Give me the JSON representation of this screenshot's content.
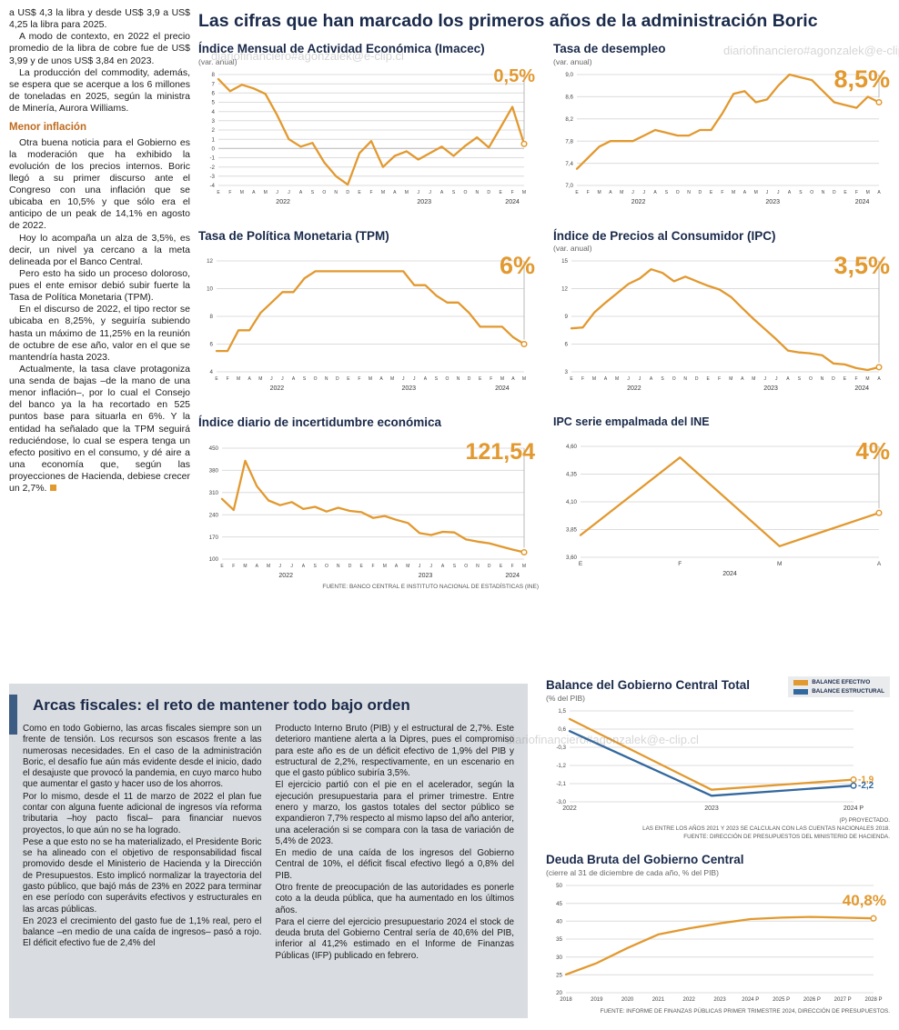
{
  "watermark": "diariofinanciero#agonzalek@e-clip.cl",
  "colors": {
    "accent_orange": "#E2992F",
    "accent_blue": "#33689E",
    "navy": "#1A2A4A",
    "gray_box": "#D9DCE0"
  },
  "article": {
    "intro": [
      "a US$ 4,3 la libra y desde US$ 3,9 a US$ 4,25 la libra para 2025.",
      "A modo de contexto, en 2022 el precio promedio de la libra de cobre fue de US$ 3,99 y de unos US$ 3,84 en 2023.",
      "La producción del commodity, además, se espera que se acerque a los 6 millones de toneladas en 2025, según la ministra de Minería, Aurora Williams."
    ],
    "subhead": "Menor inflación",
    "body": [
      "Otra buena noticia para el Gobierno es la moderación que ha exhibido la evolución de los precios internos. Boric llegó a su primer discurso ante el Congreso con una inflación que se ubicaba en 10,5% y que sólo era el anticipo de un peak de 14,1% en agosto de 2022.",
      "Hoy lo acompaña un alza de 3,5%, es decir, un nivel ya cercano a la meta delineada por el Banco Central.",
      "Pero esto ha sido un proceso doloroso, pues el ente emisor debió subir fuerte la Tasa de Política Monetaria (TPM).",
      "En el discurso de 2022, el tipo rector se ubicaba en 8,25%, y seguiría subiendo hasta un máximo de 11,25% en la reunión de octubre de ese año, valor en el que se mantendría hasta 2023.",
      "Actualmente, la tasa clave protagoniza una senda de bajas –de la mano de una menor inflación–, por lo cual el Consejo del banco ya la ha recortado en 525 puntos base para situarla en 6%. Y la entidad ha señalado que la TPM seguirá reduciéndose, lo cual se espera tenga un efecto positivo en el consumo, y dé aire a una economía que, según las proyecciones de Hacienda, debiese crecer un 2,7%."
    ]
  },
  "main": {
    "title": "Las cifras que han marcado los primeros años de la administración Boric",
    "source": "FUENTE: BANCO CENTRAL E INSTITUTO NACIONAL DE ESTADÍSTICAS (INE)"
  },
  "bottom": {
    "title": "Arcas fiscales: el reto de mantener todo bajo orden",
    "col1": [
      "Como en todo Gobierno, las arcas fiscales siempre son un frente de tensión. Los recursos son escasos frente a las numerosas necesidades. En el caso de la administración Boric, el desafío fue aún más evidente desde el inicio, dado el desajuste que provocó la pandemia, en cuyo marco hubo que aumentar el gasto y hacer uso de los ahorros.",
      "Por lo mismo, desde el 11 de marzo de 2022 el plan fue contar con alguna fuente adicional de ingresos vía reforma tributaria –hoy pacto fiscal– para financiar nuevos proyectos, lo que aún no se ha logrado.",
      "Pese a que esto no se ha materializado, el Presidente Boric se ha alineado con el objetivo de responsabilidad fiscal promovido desde el Ministerio de Hacienda y la Dirección de Presupuestos. Esto implicó normalizar la trayectoria del gasto público, que bajó más de 23% en 2022 para terminar en ese período con superávits efectivos y estructurales en las arcas públicas.",
      "En 2023 el crecimiento del gasto fue de 1,1% real, pero el balance –en medio de una caída de ingresos– pasó a rojo. El déficit efectivo fue de 2,4% del"
    ],
    "col2": [
      "Producto Interno Bruto (PIB) y el estructural de 2,7%. Este deterioro mantiene alerta a la Dipres, pues el compromiso para este año es de un déficit efectivo de 1,9% del PIB y estructural de 2,2%, respectivamente, en un escenario en que el gasto público subiría 3,5%.",
      "El ejercicio partió con el pie en el acelerador, según la ejecución presupuestaria para el primer trimestre. Entre enero y marzo, los gastos totales del sector público se expandieron 7,7% respecto al mismo lapso del año anterior, una aceleración si se compara con la tasa de variación de 5,4% de 2023.",
      "En medio de una caída de los ingresos del Gobierno Central de 10%, el déficit fiscal efectivo llegó a 0,8% del PIB.",
      "Otro frente de preocupación de las autoridades es ponerle coto a la deuda pública, que ha aumentado en los últimos años.",
      "Para el cierre del ejercicio presupuestario 2024 el stock de deuda bruta del Gobierno Central sería de 40,6% del PIB, inferior al 41,2% estimado en el Informe de Finanzas Públicas (IFP) publicado en febrero."
    ],
    "legend": [
      {
        "label": "BALANCE EFECTIVO",
        "color": "#E2992F"
      },
      {
        "label": "BALANCE ESTRUCTURAL",
        "color": "#33689E"
      }
    ],
    "notes": [
      "(P) PROYECTADO.",
      "LAS ENTRE LOS AÑOS 2021 Y 2023 SE CALCULAN CON LAS CUENTAS NACIONALES 2018.",
      "FUENTE: DIRECCIÓN DE PRESUPUESTOS DEL MINISTERIO DE HACIENDA."
    ],
    "deuda_source": "FUENTE: INFORME DE FINANZAS PÚBLICAS PRIMER TRIMESTRE 2024, DIRECCIÓN DE PRESUPUESTOS."
  },
  "chart_data": [
    {
      "type": "line",
      "title": "Índice Mensual de Actividad Económica (Imacec)",
      "subtitle": "(var. anual)",
      "big_value": "0,5%",
      "big_size": 20,
      "y_min": -4,
      "y_max": 8,
      "y_ticks": [
        8,
        7,
        6,
        5,
        4,
        3,
        2,
        1,
        0,
        -1,
        -2,
        -3,
        -4
      ],
      "y_tick_labels": [
        "8",
        "7",
        "6",
        "5",
        "4",
        "3",
        "2",
        "1",
        "0",
        "-1",
        "-2",
        "-3",
        "-4"
      ],
      "x_labels": [
        "E",
        "F",
        "M",
        "A",
        "M",
        "J",
        "J",
        "A",
        "S",
        "O",
        "N",
        "D",
        "E",
        "F",
        "M",
        "A",
        "M",
        "J",
        "J",
        "A",
        "S",
        "O",
        "N",
        "D",
        "E",
        "F",
        "M"
      ],
      "years": [
        {
          "label": "2022",
          "from": 0,
          "to": 11
        },
        {
          "label": "2023",
          "from": 12,
          "to": 23
        },
        {
          "label": "2024",
          "from": 24,
          "to": 26
        }
      ],
      "series": [
        {
          "name": "Imacec",
          "color": "#E2992F",
          "values": [
            7.5,
            6.2,
            6.9,
            6.5,
            5.9,
            3.6,
            1.0,
            0.2,
            0.6,
            -1.5,
            -3.0,
            -3.9,
            -0.5,
            0.8,
            -2.0,
            -0.8,
            -0.3,
            -1.2,
            -0.5,
            0.2,
            -0.8,
            0.3,
            1.2,
            0.1,
            2.3,
            4.5,
            0.5
          ]
        }
      ],
      "end_line": true,
      "ml": 22,
      "mr": 16
    },
    {
      "type": "line",
      "title": "Tasa de desempleo",
      "subtitle": "(var. anual)",
      "big_value": "8,5%",
      "big_size": 27,
      "y_min": 7.0,
      "y_max": 9.0,
      "y_ticks": [
        9.0,
        8.6,
        8.2,
        7.8,
        7.4,
        7.0
      ],
      "y_tick_labels": [
        "9,0",
        "8,6",
        "8,2",
        "7,8",
        "7,4",
        "7,0"
      ],
      "x_labels": [
        "E",
        "F",
        "M",
        "A",
        "M",
        "J",
        "J",
        "A",
        "S",
        "O",
        "N",
        "D",
        "E",
        "F",
        "M",
        "A",
        "M",
        "J",
        "J",
        "A",
        "S",
        "O",
        "N",
        "D",
        "E",
        "F",
        "M",
        "A"
      ],
      "years": [
        {
          "label": "2022",
          "from": 0,
          "to": 11
        },
        {
          "label": "2023",
          "from": 12,
          "to": 23
        },
        {
          "label": "2024",
          "from": 24,
          "to": 27
        }
      ],
      "series": [
        {
          "name": "Tasa de desempleo",
          "color": "#E2992F",
          "values": [
            7.3,
            7.5,
            7.7,
            7.8,
            7.8,
            7.8,
            7.9,
            8.0,
            7.95,
            7.9,
            7.9,
            8.0,
            8.0,
            8.3,
            8.65,
            8.7,
            8.5,
            8.55,
            8.8,
            9.0,
            8.95,
            8.9,
            8.7,
            8.5,
            8.45,
            8.4,
            8.6,
            8.5
          ]
        }
      ],
      "end_line": true,
      "ml": 26,
      "mr": 16
    },
    {
      "type": "line",
      "title": "Tasa de Política Monetaria (TPM)",
      "subtitle": "",
      "big_value": "6%",
      "big_size": 27,
      "y_min": 4,
      "y_max": 12,
      "y_ticks": [
        12,
        10,
        8,
        6,
        4
      ],
      "y_tick_labels": [
        "12",
        "10",
        "8",
        "6",
        "4"
      ],
      "x_labels": [
        "E",
        "F",
        "M",
        "A",
        "M",
        "J",
        "J",
        "A",
        "S",
        "O",
        "N",
        "D",
        "E",
        "F",
        "M",
        "A",
        "M",
        "J",
        "J",
        "A",
        "S",
        "O",
        "N",
        "D",
        "E",
        "F",
        "M",
        "A",
        "M"
      ],
      "years": [
        {
          "label": "2022",
          "from": 0,
          "to": 11
        },
        {
          "label": "2023",
          "from": 12,
          "to": 23
        },
        {
          "label": "2024",
          "from": 24,
          "to": 28
        }
      ],
      "series": [
        {
          "name": "TPM",
          "color": "#E2992F",
          "values": [
            5.5,
            5.5,
            7.0,
            7.0,
            8.25,
            9.0,
            9.75,
            9.75,
            10.75,
            11.25,
            11.25,
            11.25,
            11.25,
            11.25,
            11.25,
            11.25,
            11.25,
            11.25,
            10.25,
            10.25,
            9.5,
            9.0,
            9.0,
            8.25,
            7.25,
            7.25,
            7.25,
            6.5,
            6.0
          ]
        }
      ],
      "end_line": true,
      "ml": 20,
      "mr": 16
    },
    {
      "type": "line",
      "title": "Índice de Precios al Consumidor (IPC)",
      "subtitle": "(var. anual)",
      "big_value": "3,5%",
      "big_size": 27,
      "y_min": 3,
      "y_max": 15,
      "y_ticks": [
        15,
        12,
        9,
        6,
        3
      ],
      "y_tick_labels": [
        "15",
        "12",
        "9",
        "6",
        "3"
      ],
      "x_labels": [
        "E",
        "F",
        "M",
        "A",
        "M",
        "J",
        "J",
        "A",
        "S",
        "O",
        "N",
        "D",
        "E",
        "F",
        "M",
        "A",
        "M",
        "J",
        "J",
        "A",
        "S",
        "O",
        "N",
        "D",
        "E",
        "F",
        "M",
        "A"
      ],
      "years": [
        {
          "label": "2022",
          "from": 0,
          "to": 11
        },
        {
          "label": "2023",
          "from": 12,
          "to": 23
        },
        {
          "label": "2024",
          "from": 24,
          "to": 27
        }
      ],
      "series": [
        {
          "name": "IPC",
          "color": "#E2992F",
          "values": [
            7.7,
            7.8,
            9.4,
            10.5,
            11.5,
            12.5,
            13.1,
            14.1,
            13.7,
            12.8,
            13.3,
            12.8,
            12.3,
            11.9,
            11.1,
            9.9,
            8.7,
            7.6,
            6.5,
            5.3,
            5.1,
            5.0,
            4.8,
            3.9,
            3.8,
            3.4,
            3.2,
            3.5
          ]
        }
      ],
      "end_line": true,
      "ml": 20,
      "mr": 16
    },
    {
      "type": "line",
      "title": "Índice diario de incertidumbre económica",
      "subtitle": "",
      "big_value": "121,54",
      "big_size": 25,
      "y_min": 100,
      "y_max": 450,
      "y_ticks": [
        450,
        380,
        310,
        240,
        170,
        100
      ],
      "y_tick_labels": [
        "450",
        "380",
        "310",
        "240",
        "170",
        "100"
      ],
      "x_labels": [
        "E",
        "F",
        "M",
        "A",
        "M",
        "J",
        "J",
        "A",
        "S",
        "O",
        "N",
        "D",
        "E",
        "F",
        "M",
        "A",
        "M",
        "J",
        "J",
        "A",
        "S",
        "O",
        "N",
        "D",
        "E",
        "F",
        "M"
      ],
      "years": [
        {
          "label": "2022",
          "from": 0,
          "to": 11
        },
        {
          "label": "2023",
          "from": 12,
          "to": 23
        },
        {
          "label": "2024",
          "from": 24,
          "to": 26
        }
      ],
      "series": [
        {
          "name": "Incertidumbre económica",
          "color": "#E2992F",
          "values": [
            290,
            255,
            410,
            330,
            285,
            270,
            280,
            258,
            265,
            250,
            262,
            252,
            248,
            230,
            236,
            224,
            214,
            182,
            176,
            186,
            184,
            162,
            155,
            150,
            140,
            130,
            121.54
          ]
        }
      ],
      "end_line": true,
      "ml": 26,
      "mr": 16
    },
    {
      "type": "line",
      "title": "IPC serie empalmada del INE",
      "subtitle": "",
      "big_value": "4%",
      "big_size": 26,
      "y_min": 3.6,
      "y_max": 4.6,
      "y_ticks": [
        4.6,
        4.35,
        4.1,
        3.85,
        3.6
      ],
      "y_tick_labels": [
        "4,60",
        "4,35",
        "4,10",
        "3,85",
        "3,60"
      ],
      "x_labels": [
        "E",
        "F",
        "M",
        "A"
      ],
      "x_size": 6.5,
      "years": [
        {
          "label": "2024",
          "from": 0,
          "to": 3
        }
      ],
      "series": [
        {
          "name": "IPC serie empalmada",
          "color": "#E2992F",
          "values": [
            3.8,
            4.5,
            3.7,
            4.0
          ]
        }
      ],
      "end_line": true,
      "ml": 30,
      "mr": 16
    },
    {
      "type": "line",
      "title": "Balance del Gobierno Central Total",
      "subtitle": "(% del PIB)",
      "y_min": -3.0,
      "y_max": 1.5,
      "y_ticks": [
        1.5,
        0.6,
        -0.3,
        -1.2,
        -2.1,
        -3.0
      ],
      "y_tick_labels": [
        "1,5",
        "0,6",
        "-0,3",
        "-1,2",
        "-2,1",
        "-3,0"
      ],
      "x_labels": [
        "2022",
        "2023",
        "2024 P"
      ],
      "x_size": 7,
      "series": [
        {
          "name": "Balance efectivo",
          "color": "#E2992F",
          "values": [
            1.1,
            -2.4,
            -1.9
          ],
          "end_label": "-1,9"
        },
        {
          "name": "Balance estructural",
          "color": "#33689E",
          "values": [
            0.5,
            -2.7,
            -2.2
          ],
          "end_label": "-2,2"
        }
      ],
      "end_line": false,
      "ml": 26,
      "mr": 36,
      "mb": 14
    },
    {
      "type": "line",
      "title": "Deuda Bruta del Gobierno Central",
      "subtitle": "(cierre al 31 de diciembre de cada año, % del PIB)",
      "big_value": "40,8%",
      "big_size": 17,
      "big_top": 16,
      "y_min": 20,
      "y_max": 50,
      "y_ticks": [
        50,
        45,
        40,
        35,
        30,
        25,
        20
      ],
      "y_tick_labels": [
        "50",
        "45",
        "40",
        "35",
        "30",
        "25",
        "20"
      ],
      "x_labels": [
        "2018",
        "2019",
        "2020",
        "2021",
        "2022",
        "2023",
        "2024 P",
        "2025 P",
        "2026 P",
        "2027 P",
        "2028 P"
      ],
      "x_size": 6,
      "series": [
        {
          "name": "Deuda bruta",
          "color": "#E2992F",
          "values": [
            25.1,
            28.3,
            32.5,
            36.3,
            38.0,
            39.4,
            40.6,
            41.0,
            41.2,
            41.0,
            40.8
          ]
        }
      ],
      "end_line": false,
      "ml": 22,
      "mr": 14,
      "mb": 14
    }
  ]
}
